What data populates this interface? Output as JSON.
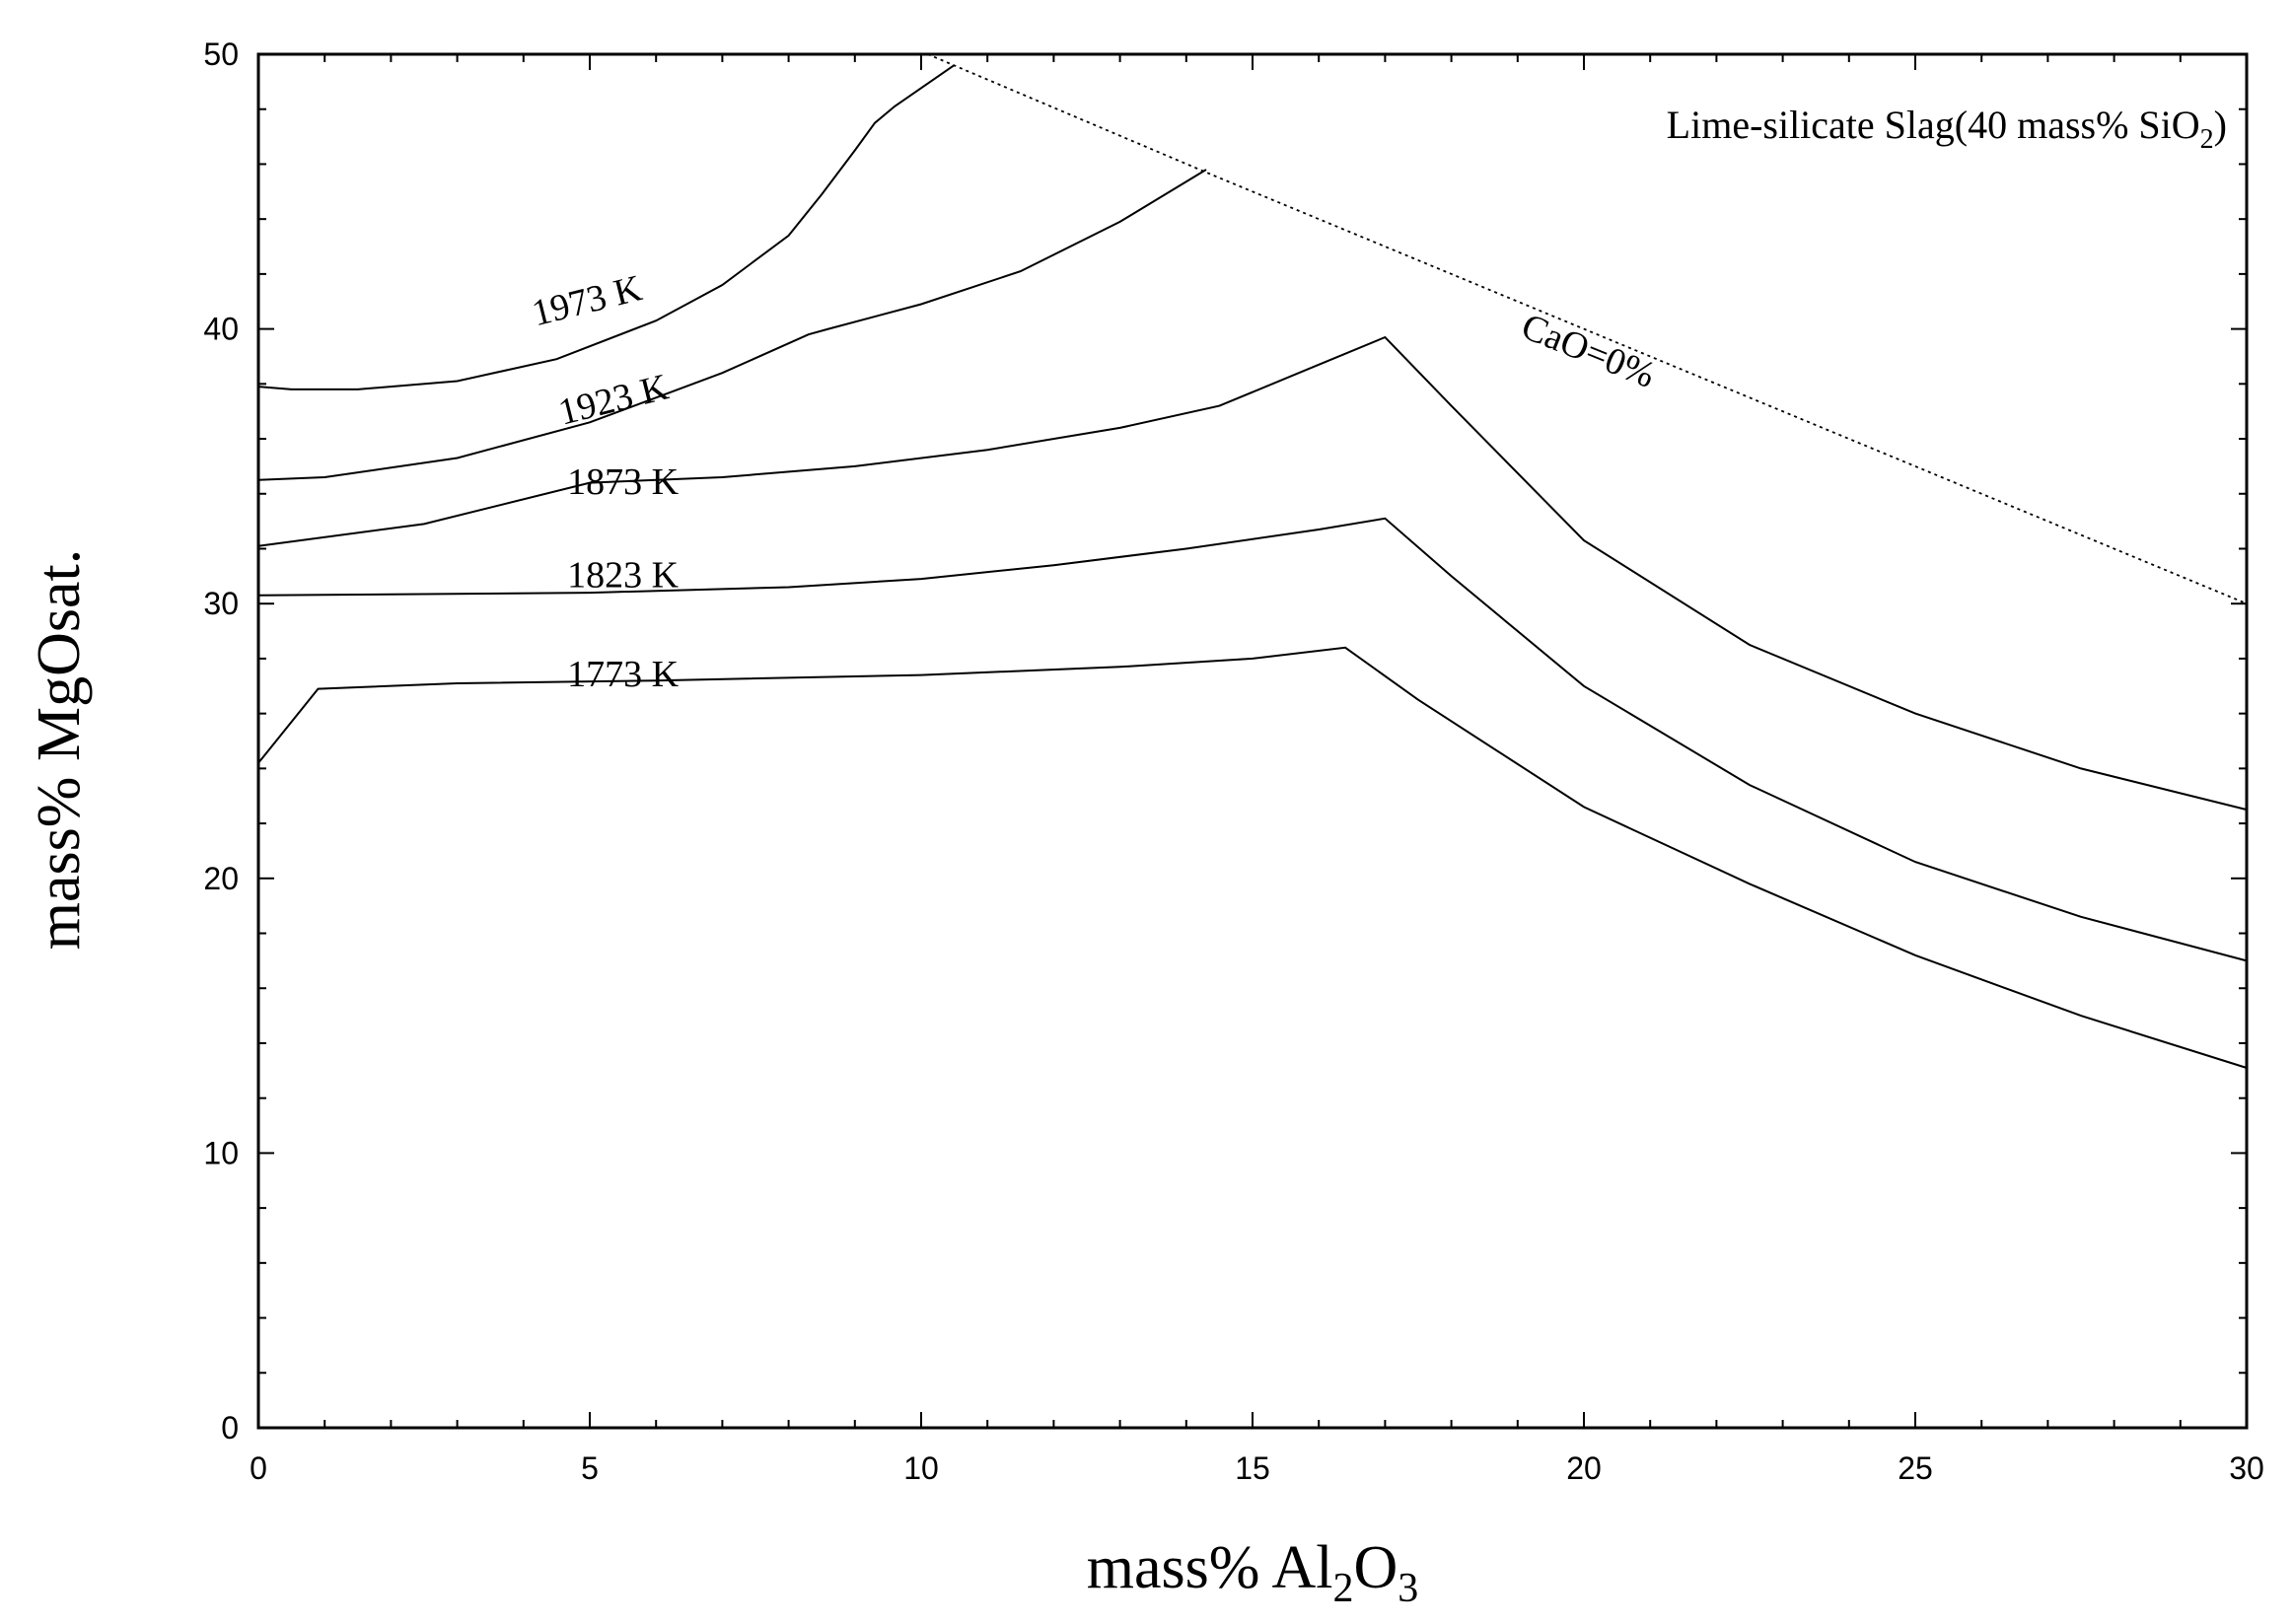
{
  "chart_data": {
    "type": "line",
    "title": "Lime-silicate Slag(40 mass% SiO",
    "title_sub": "2",
    "title_end": ")",
    "xlabel": "mass% Al",
    "xlabel_sub1": "2",
    "xlabel_mid": "O",
    "xlabel_sub2": "3",
    "ylabel": "mass% MgOsat.",
    "xlim": [
      0,
      30
    ],
    "ylim": [
      0,
      50
    ],
    "xticks": [
      0,
      5,
      10,
      15,
      20,
      25,
      30
    ],
    "yticks": [
      0,
      10,
      20,
      30,
      40,
      50
    ],
    "grid": false,
    "legend": "none",
    "series": [
      {
        "name": "1973 K",
        "label_at": [
          5.0,
          40.6
        ],
        "label_angle": -14,
        "x": [
          0,
          0.5,
          1.5,
          3,
          4.5,
          6,
          7,
          8,
          8.5,
          9,
          9.3,
          9.6,
          10.5
        ],
        "y": [
          37.9,
          37.8,
          37.8,
          38.1,
          38.9,
          40.3,
          41.6,
          43.4,
          44.9,
          46.5,
          47.5,
          48.1,
          49.6
        ]
      },
      {
        "name": "1923 K",
        "label_at": [
          5.4,
          37.0
        ],
        "label_angle": -14,
        "x": [
          0,
          1,
          3,
          5,
          7,
          8.3,
          8.6,
          10,
          11.5,
          13,
          14.3
        ],
        "y": [
          34.5,
          34.6,
          35.3,
          36.6,
          38.4,
          39.8,
          40.0,
          40.9,
          42.1,
          43.9,
          45.8
        ]
      },
      {
        "name": "1873 K",
        "label_at": [
          5.5,
          34.0
        ],
        "label_angle": 0,
        "x": [
          0,
          2.5,
          5,
          7,
          9,
          11,
          13,
          14.5,
          16,
          17,
          18,
          20,
          22.5,
          25,
          27.5,
          30
        ],
        "y": [
          32.1,
          32.9,
          34.4,
          34.6,
          35.0,
          35.6,
          36.4,
          37.2,
          38.7,
          39.7,
          37.2,
          32.3,
          28.5,
          26.0,
          24.0,
          22.5
        ]
      },
      {
        "name": "1823 K",
        "label_at": [
          5.5,
          30.6
        ],
        "label_angle": 0,
        "x": [
          0,
          5,
          8,
          10,
          12,
          14,
          16,
          17,
          18,
          20,
          22.5,
          25,
          27.5,
          30
        ],
        "y": [
          30.3,
          30.4,
          30.6,
          30.9,
          31.4,
          32.0,
          32.7,
          33.1,
          31.0,
          27.0,
          23.4,
          20.6,
          18.6,
          17.0
        ]
      },
      {
        "name": "1773 K",
        "label_at": [
          5.5,
          27.0
        ],
        "label_angle": 0,
        "x": [
          0,
          0.9,
          3,
          6,
          10,
          13,
          15,
          16.4,
          17.5,
          20,
          22.5,
          25,
          27.5,
          30
        ],
        "y": [
          24.2,
          26.9,
          27.1,
          27.2,
          27.4,
          27.7,
          28.0,
          28.4,
          26.5,
          22.6,
          19.8,
          17.2,
          15.0,
          13.1
        ]
      },
      {
        "name": "CaO=0%",
        "style": "dotted",
        "label_at": [
          20.0,
          38.8
        ],
        "label_angle": 22,
        "x": [
          10.1,
          14.4,
          20,
          25,
          30
        ],
        "y": [
          50.0,
          45.6,
          40.0,
          35.0,
          30.0
        ]
      }
    ]
  }
}
